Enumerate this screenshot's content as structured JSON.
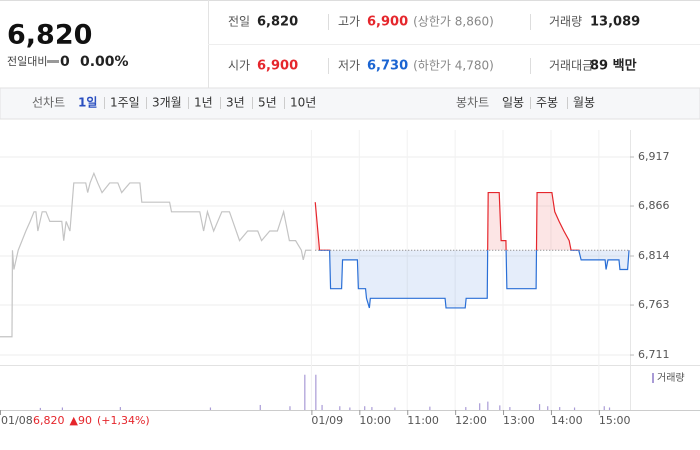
{
  "header": {
    "price": "6,820",
    "change_label": "전일대비",
    "change": "0",
    "change_rate": "0.00%",
    "stats": [
      {
        "label": "전일",
        "value": "6,820",
        "color": "#222222"
      },
      {
        "label": "고가",
        "value": "6,900",
        "note": "(상한가 8,860)",
        "color": "#e5262c"
      },
      {
        "label": "거래량",
        "value": "13,089",
        "color": "#222222"
      },
      {
        "label": "시가",
        "value": "6,900",
        "color": "#e5262c"
      },
      {
        "label": "저가",
        "value": "6,730",
        "note": "(하한가 4,780)",
        "color": "#1a64d2"
      },
      {
        "label": "거래대금",
        "value": "89 백만",
        "color": "#222222"
      }
    ]
  },
  "tabs": {
    "line_label": "선차트",
    "line_items": [
      "1일",
      "1주일",
      "3개월",
      "1년",
      "3년",
      "5년",
      "10년"
    ],
    "selected_index": 0,
    "selected_color": "#2a4fc0",
    "candle_label": "봉차트",
    "candle_items": [
      "일봉",
      "주봉",
      "월봉"
    ]
  },
  "chart_data": {
    "type": "line",
    "base": 6820,
    "xlim": [
      0,
      13.15
    ],
    "ylim": [
      6700,
      6930
    ],
    "yticks": [
      {
        "value": 6711,
        "label": "6,711"
      },
      {
        "value": 6763,
        "label": "6,763"
      },
      {
        "value": 6814,
        "label": "6,814"
      },
      {
        "value": 6866,
        "label": "6,866"
      },
      {
        "value": 6917,
        "label": "6,917"
      }
    ],
    "xticks": [
      {
        "value": 0,
        "label": "01/08"
      },
      {
        "value": 6.5,
        "label": "01/09"
      },
      {
        "value": 7.5,
        "label": "10:00"
      },
      {
        "value": 8.5,
        "label": "11:00"
      },
      {
        "value": 9.5,
        "label": "12:00"
      },
      {
        "value": 10.5,
        "label": "13:00"
      },
      {
        "value": 11.5,
        "label": "14:00"
      },
      {
        "value": 12.5,
        "label": "15:00"
      }
    ],
    "grid": true,
    "series": [
      {
        "color": "#c4c4c4",
        "x": [
          0,
          0.25,
          0.26,
          0.29,
          0.38,
          0.46,
          0.54,
          0.63,
          0.71,
          0.75,
          0.79,
          0.88,
          0.96,
          1.04,
          1.17,
          1.29,
          1.33,
          1.38,
          1.46,
          1.54,
          1.63,
          1.71,
          1.79,
          1.83,
          1.88,
          1.96,
          2.04,
          2.13,
          2.29,
          2.46,
          2.54,
          2.71,
          2.92,
          2.96,
          3.54,
          3.58,
          3.67,
          3.96,
          4.17,
          4.25,
          4.33,
          4.46,
          4.63,
          4.79,
          5,
          5.17,
          5.38,
          5.46,
          5.63,
          5.79,
          5.92,
          6.04,
          6.17,
          6.29,
          6.33,
          6.38,
          6.5
        ],
        "values": [
          6730,
          6730,
          6820,
          6800,
          6820,
          6830,
          6840,
          6850,
          6860,
          6860,
          6840,
          6860,
          6860,
          6850,
          6850,
          6850,
          6830,
          6850,
          6840,
          6890,
          6890,
          6890,
          6890,
          6880,
          6890,
          6900,
          6890,
          6880,
          6890,
          6890,
          6880,
          6890,
          6890,
          6870,
          6870,
          6860,
          6860,
          6860,
          6860,
          6840,
          6860,
          6840,
          6860,
          6860,
          6830,
          6840,
          6840,
          6830,
          6840,
          6840,
          6860,
          6830,
          6830,
          6820,
          6810,
          6820,
          6820
        ]
      },
      {
        "color": "#e5262c",
        "below_color": "#2a6fd6",
        "x": [
          6.58,
          6.67,
          6.88,
          6.9,
          7.13,
          7.15,
          7.46,
          7.48,
          7.63,
          7.65,
          7.71,
          7.73,
          9.29,
          9.31,
          9.71,
          9.73,
          10.17,
          10.19,
          10.42,
          10.46,
          10.56,
          10.58,
          11.19,
          11.21,
          11.52,
          11.58,
          11.67,
          11.77,
          11.88,
          11.92,
          12.08,
          12.13,
          12.63,
          12.65,
          12.69,
          12.92,
          12.94,
          13.1,
          13.13
        ],
        "values": [
          6870,
          6820,
          6820,
          6780,
          6780,
          6810,
          6810,
          6780,
          6780,
          6770,
          6760,
          6770,
          6770,
          6760,
          6760,
          6770,
          6770,
          6880,
          6880,
          6830,
          6830,
          6780,
          6780,
          6880,
          6880,
          6860,
          6850,
          6840,
          6830,
          6820,
          6820,
          6810,
          6810,
          6800,
          6810,
          6810,
          6800,
          6800,
          6820
        ]
      }
    ],
    "annotation": {
      "price": "6,820",
      "change": "▲90",
      "rate": "(+1,34%)",
      "color": "#e5262c"
    },
    "volume": {
      "name": "거래량",
      "color": "#a99bd6",
      "lim": [
        0,
        100
      ],
      "x": [
        0.83,
        1.29,
        2.5,
        4.38,
        5.42,
        6.04,
        6.35,
        6.58,
        6.71,
        7.08,
        7.29,
        7.6,
        7.75,
        8.23,
        8.96,
        9.71,
        10,
        10.17,
        10.42,
        10.63,
        11.25,
        11.42,
        11.67,
        11.98,
        12.6,
        12.71
      ],
      "values": [
        5,
        6,
        7,
        6,
        12,
        9,
        84,
        84,
        12,
        9,
        6,
        9,
        7,
        6,
        8,
        7,
        16,
        20,
        11,
        7,
        14,
        9,
        7,
        6,
        9,
        6
      ]
    }
  }
}
